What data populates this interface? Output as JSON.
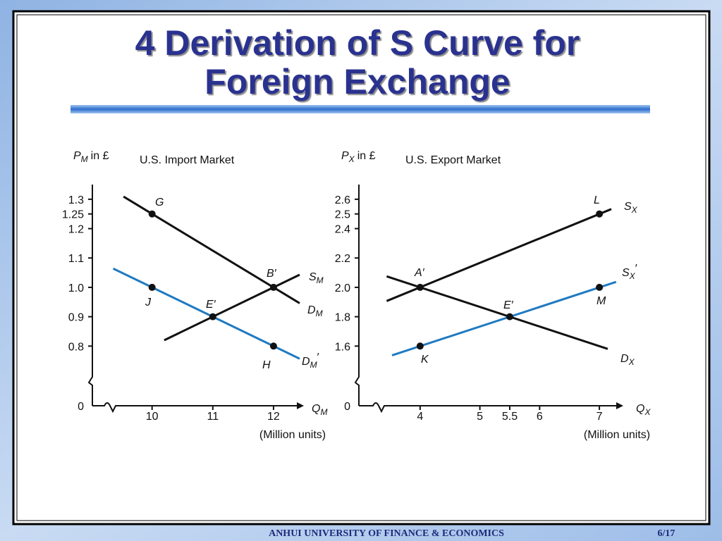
{
  "slide": {
    "title_lines": [
      "4 Derivation of S Curve for",
      "Foreign Exchange"
    ],
    "footer": "ANHUI UNIVERSITY OF FINANCE & ECONOMICS",
    "page": "6/17"
  },
  "chart_data": [
    {
      "type": "line",
      "title": "U.S. Import Market",
      "y_label": {
        "symbol": "P",
        "sub": "M",
        "text": "in £"
      },
      "x_label": {
        "symbol": "Q",
        "sub": "M"
      },
      "x_unit": "(Million units)",
      "xlim": [
        0,
        12.5
      ],
      "x_break": [
        0,
        9.4
      ],
      "xticks": [
        10,
        11,
        12
      ],
      "ylim": [
        0,
        1.35
      ],
      "y_break": [
        0,
        0.7
      ],
      "yticks": [
        0,
        0.8,
        0.9,
        {
          "value": 1,
          "label": "1.0"
        },
        1.1,
        1.2,
        1.25,
        1.3
      ],
      "series": [
        {
          "name": "D",
          "sub": "M",
          "color": "#111111",
          "x": [
            9.53,
            12.43
          ],
          "values": [
            1.309,
            0.946
          ]
        },
        {
          "name": "S",
          "sub": "M",
          "color": "#111111",
          "x": [
            10.2,
            12.43
          ],
          "values": [
            0.82,
            1.043
          ]
        },
        {
          "name": "D",
          "sub": "M",
          "prime": "′",
          "color": "#1f7ac2",
          "x": [
            9.36,
            12.43
          ],
          "values": [
            1.064,
            0.757
          ]
        }
      ],
      "points": [
        {
          "label": "G",
          "x": 10,
          "y": 1.25
        },
        {
          "label": "B′",
          "x": 12,
          "y": 1
        },
        {
          "label": "J",
          "x": 10,
          "y": 1
        },
        {
          "label": "E′",
          "x": 11,
          "y": 0.9
        },
        {
          "label": "H",
          "x": 12,
          "y": 0.8
        }
      ]
    },
    {
      "type": "line",
      "title": "U.S. Export Market",
      "y_label": {
        "symbol": "P",
        "sub": "X",
        "text": "in £"
      },
      "x_label": {
        "symbol": "Q",
        "sub": "X"
      },
      "x_unit": "(Million units)",
      "xlim": [
        0,
        7.4
      ],
      "x_break": [
        0,
        3.4
      ],
      "xticks": [
        4,
        5,
        5.5,
        6,
        7
      ],
      "ylim": [
        0,
        2.7
      ],
      "y_break": [
        0,
        1.4
      ],
      "yticks": [
        0,
        1.6,
        1.8,
        {
          "value": 2,
          "label": "2.0"
        },
        2.2,
        2.4,
        2.5,
        2.6
      ],
      "series": [
        {
          "name": "S",
          "sub": "X",
          "color": "#111111",
          "x": [
            3.44,
            7.2
          ],
          "values": [
            1.907,
            2.533
          ]
        },
        {
          "name": "D",
          "sub": "X",
          "color": "#111111",
          "x": [
            3.44,
            7.14
          ],
          "values": [
            2.075,
            1.581
          ]
        },
        {
          "name": "S",
          "sub": "X",
          "prime": "′",
          "color": "#1f7ac2",
          "x": [
            3.53,
            7.28
          ],
          "values": [
            1.537,
            2.037
          ]
        }
      ],
      "points": [
        {
          "label": "L",
          "x": 7,
          "y": 2.5
        },
        {
          "label": "A′",
          "x": 4,
          "y": 2
        },
        {
          "label": "E′",
          "x": 5.5,
          "y": 1.8
        },
        {
          "label": "M",
          "x": 7,
          "y": 2
        },
        {
          "label": "K",
          "x": 4,
          "y": 1.6
        }
      ]
    }
  ]
}
